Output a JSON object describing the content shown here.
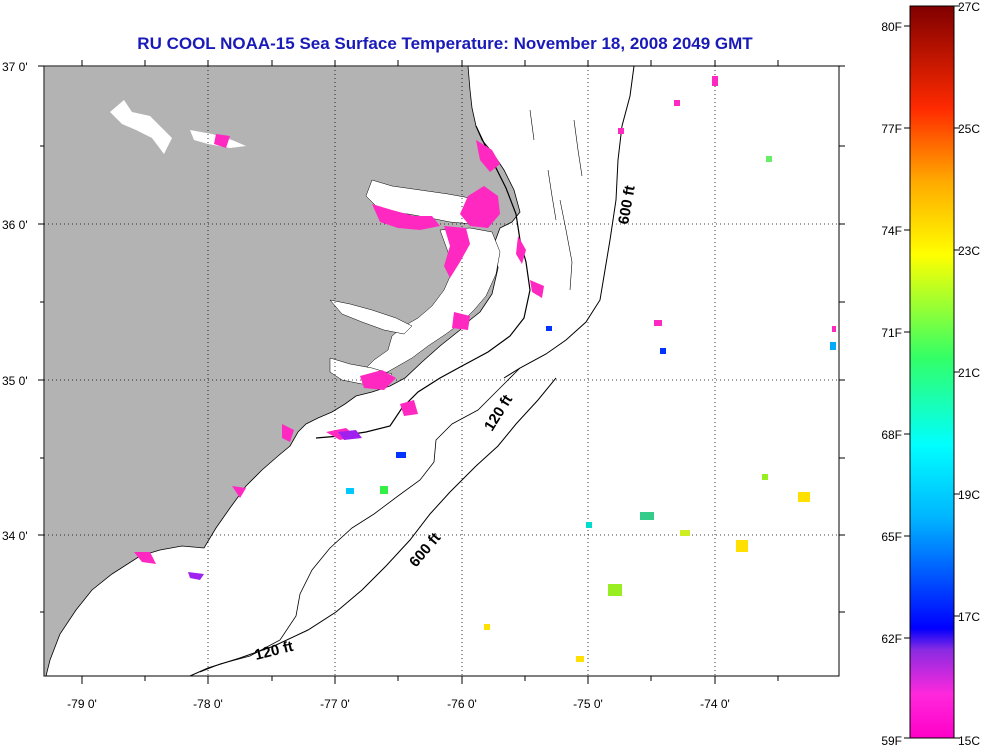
{
  "title": "RU COOL  NOAA-15  Sea Surface Temperature:  November 18, 2008 2049 GMT",
  "map": {
    "lat_labels": [
      "37 0'",
      "36 0'",
      "35 0'",
      "34 0'"
    ],
    "lon_labels": [
      "-79 0'",
      "-78 0'",
      "-77 0'",
      "-76 0'",
      "-75 0'",
      "-74 0'"
    ],
    "contour_labels": [
      "600 ft",
      "120 ft",
      "600 ft",
      "120 ft"
    ],
    "land_color": "#b3b3b3",
    "ocean_color": "#ffffff"
  },
  "colorbar": {
    "fahrenheit_labels": [
      "80F",
      "77F",
      "74F",
      "71F",
      "68F",
      "65F",
      "62F",
      "59F"
    ],
    "celsius_labels": [
      "27C",
      "25C",
      "23C",
      "21C",
      "19C",
      "17C",
      "15C"
    ],
    "range_c": [
      15,
      27
    ],
    "range_f": [
      59,
      80
    ]
  }
}
